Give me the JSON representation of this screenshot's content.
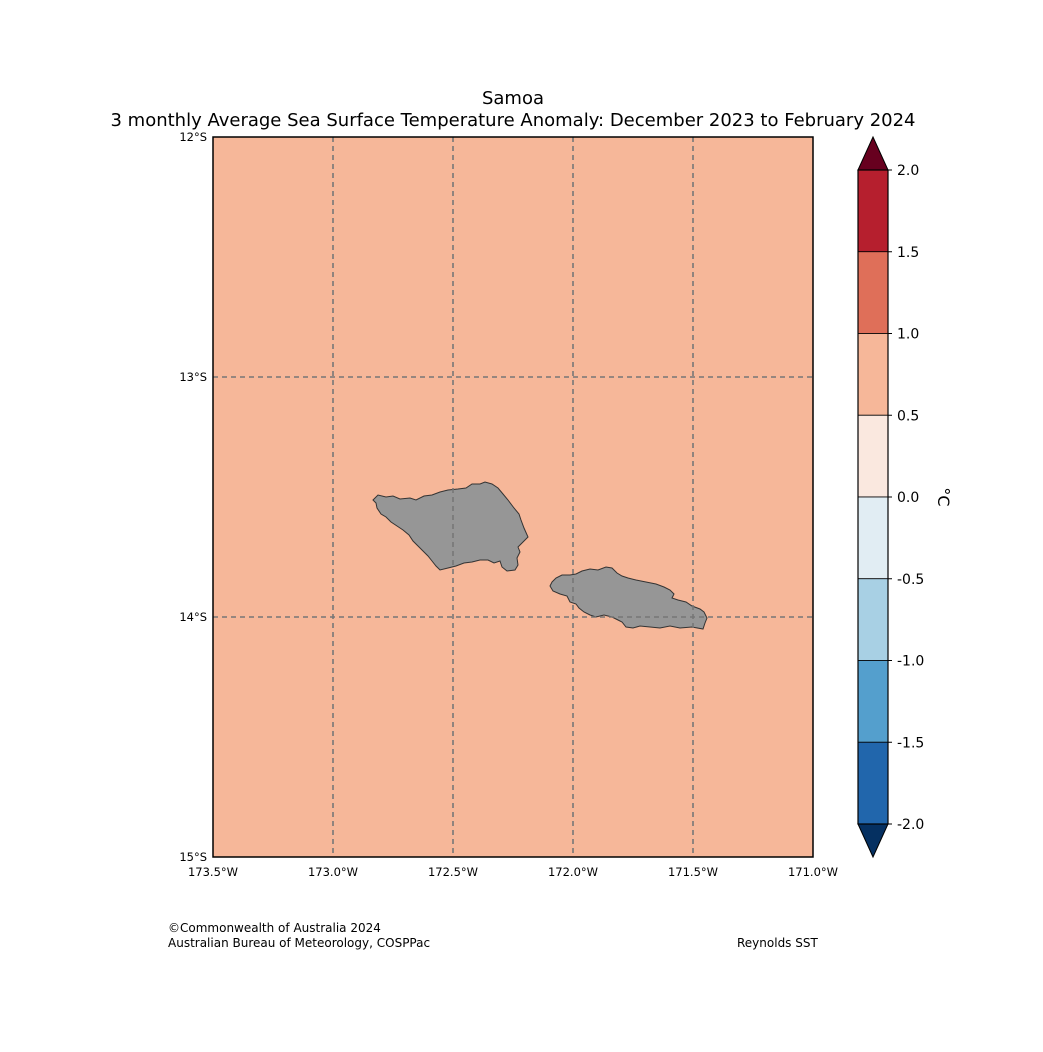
{
  "title": {
    "line1": "Samoa",
    "line2": "3 monthly Average Sea Surface Temperature Anomaly: December 2023 to February 2024"
  },
  "map": {
    "lon_range": [
      -173.5,
      -171.0
    ],
    "lat_range": [
      -15.0,
      -12.0
    ],
    "lon_ticks": [
      "173.5°W",
      "173.0°W",
      "172.5°W",
      "172.0°W",
      "171.5°W",
      "171.0°W"
    ],
    "lat_ticks": [
      "12°S",
      "13°S",
      "14°S",
      "15°S"
    ],
    "gridlines": "dashed",
    "sea_color": "#f6b799",
    "land_color": "#969696",
    "uniform_anomaly_bin": "0.5 to 1.0",
    "islands": [
      "Savai'i",
      "Upolu"
    ]
  },
  "colorbar": {
    "label": "°C",
    "tick_labels": [
      "2.0",
      "1.5",
      "1.0",
      "0.5",
      "0.0",
      "-0.5",
      "-1.0",
      "-1.5",
      "-2.0"
    ],
    "bins": [
      {
        "range": "> 2.0",
        "color": "#67001f"
      },
      {
        "range": "1.5 to 2.0",
        "color": "#b61f2e"
      },
      {
        "range": "1.0 to 1.5",
        "color": "#df6f59"
      },
      {
        "range": "0.5 to 1.0",
        "color": "#f6b799"
      },
      {
        "range": "0.0 to 0.5",
        "color": "#fae8df"
      },
      {
        "range": "-0.5 to 0.0",
        "color": "#e1edf3"
      },
      {
        "range": "-1.0 to -0.5",
        "color": "#a8d0e4"
      },
      {
        "range": "-1.5 to -1.0",
        "color": "#549fcd"
      },
      {
        "range": "-2.0 to -1.5",
        "color": "#2166ac"
      },
      {
        "range": "< -2.0",
        "color": "#053061"
      }
    ]
  },
  "footer": {
    "credit_line1": "©Commonwealth of Australia 2024",
    "credit_line2": "Australian Bureau of Meteorology, COSPPac",
    "dataset": "Reynolds SST"
  }
}
